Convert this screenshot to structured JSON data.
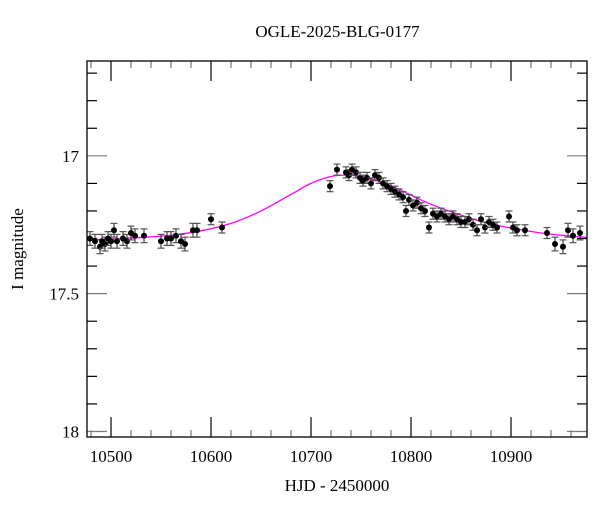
{
  "chart_data": {
    "type": "scatter",
    "title": "OGLE-2025-BLG-0177",
    "xlabel": "HJD - 2450000",
    "ylabel": "I magnitude",
    "xlim": [
      10476,
      10976
    ],
    "ylim": [
      18.02,
      16.656
    ],
    "y_inverted": true,
    "grid": false,
    "x_major_ticks": [
      10500,
      10600,
      10700,
      10800,
      10900
    ],
    "x_minor_step": 20,
    "y_major_ticks": [
      17,
      17.5,
      18
    ],
    "y_tick_labels": [
      "17",
      "17.5",
      "18"
    ],
    "y_minor_step": 0.1,
    "colors": {
      "data": "#000000",
      "errorbar": "#555555",
      "model": "#ff00ff",
      "frame": "#000000"
    },
    "series": [
      {
        "name": "OGLE I-band photometry",
        "kind": "points_with_errorbars",
        "points": [
          [
            10479,
            17.3,
            0.025
          ],
          [
            10484,
            17.31,
            0.025
          ],
          [
            10489,
            17.33,
            0.025
          ],
          [
            10491,
            17.31,
            0.025
          ],
          [
            10494,
            17.32,
            0.025
          ],
          [
            10497,
            17.3,
            0.025
          ],
          [
            10500,
            17.31,
            0.025
          ],
          [
            10503,
            17.27,
            0.025
          ],
          [
            10506,
            17.31,
            0.025
          ],
          [
            10512,
            17.3,
            0.025
          ],
          [
            10516,
            17.31,
            0.025
          ],
          [
            10520,
            17.28,
            0.025
          ],
          [
            10524,
            17.29,
            0.025
          ],
          [
            10533,
            17.29,
            0.025
          ],
          [
            10550,
            17.31,
            0.025
          ],
          [
            10556,
            17.3,
            0.025
          ],
          [
            10560,
            17.3,
            0.025
          ],
          [
            10565,
            17.29,
            0.025
          ],
          [
            10570,
            17.31,
            0.025
          ],
          [
            10574,
            17.32,
            0.025
          ],
          [
            10582,
            17.27,
            0.025
          ],
          [
            10586,
            17.27,
            0.025
          ],
          [
            10600,
            17.23,
            0.02
          ],
          [
            10611,
            17.26,
            0.02
          ],
          [
            10719,
            17.11,
            0.02
          ],
          [
            10726,
            17.05,
            0.02
          ],
          [
            10735,
            17.06,
            0.02
          ],
          [
            10738,
            17.07,
            0.02
          ],
          [
            10741,
            17.05,
            0.02
          ],
          [
            10745,
            17.06,
            0.02
          ],
          [
            10749,
            17.08,
            0.02
          ],
          [
            10752,
            17.09,
            0.02
          ],
          [
            10756,
            17.08,
            0.02
          ],
          [
            10760,
            17.1,
            0.02
          ],
          [
            10764,
            17.07,
            0.02
          ],
          [
            10768,
            17.08,
            0.02
          ],
          [
            10772,
            17.1,
            0.02
          ],
          [
            10776,
            17.11,
            0.02
          ],
          [
            10780,
            17.12,
            0.02
          ],
          [
            10784,
            17.13,
            0.02
          ],
          [
            10788,
            17.14,
            0.02
          ],
          [
            10792,
            17.15,
            0.02
          ],
          [
            10795,
            17.2,
            0.02
          ],
          [
            10798,
            17.16,
            0.02
          ],
          [
            10802,
            17.18,
            0.02
          ],
          [
            10806,
            17.17,
            0.02
          ],
          [
            10810,
            17.19,
            0.02
          ],
          [
            10814,
            17.2,
            0.02
          ],
          [
            10818,
            17.26,
            0.02
          ],
          [
            10822,
            17.21,
            0.02
          ],
          [
            10826,
            17.22,
            0.02
          ],
          [
            10830,
            17.21,
            0.02
          ],
          [
            10834,
            17.22,
            0.02
          ],
          [
            10838,
            17.23,
            0.02
          ],
          [
            10842,
            17.22,
            0.02
          ],
          [
            10846,
            17.23,
            0.02
          ],
          [
            10850,
            17.24,
            0.02
          ],
          [
            10854,
            17.24,
            0.02
          ],
          [
            10858,
            17.23,
            0.02
          ],
          [
            10862,
            17.25,
            0.02
          ],
          [
            10866,
            17.27,
            0.02
          ],
          [
            10870,
            17.23,
            0.02
          ],
          [
            10874,
            17.26,
            0.02
          ],
          [
            10878,
            17.24,
            0.02
          ],
          [
            10882,
            17.25,
            0.02
          ],
          [
            10886,
            17.26,
            0.02
          ],
          [
            10898,
            17.22,
            0.02
          ],
          [
            10902,
            17.26,
            0.02
          ],
          [
            10906,
            17.27,
            0.02
          ],
          [
            10914,
            17.27,
            0.02
          ],
          [
            10936,
            17.28,
            0.02
          ],
          [
            10944,
            17.32,
            0.025
          ],
          [
            10952,
            17.33,
            0.025
          ],
          [
            10957,
            17.27,
            0.025
          ],
          [
            10962,
            17.29,
            0.025
          ],
          [
            10969,
            17.28,
            0.025
          ]
        ]
      },
      {
        "name": "Microlensing model",
        "kind": "line",
        "x": [
          10476,
          10500,
          10530,
          10560,
          10590,
          10620,
          10650,
          10680,
          10700,
          10720,
          10735,
          10750,
          10770,
          10790,
          10810,
          10830,
          10850,
          10870,
          10890,
          10910,
          10930,
          10950,
          10976
        ],
        "y": [
          17.305,
          17.302,
          17.296,
          17.288,
          17.272,
          17.245,
          17.2,
          17.14,
          17.1,
          17.075,
          17.07,
          17.075,
          17.095,
          17.125,
          17.16,
          17.19,
          17.215,
          17.238,
          17.255,
          17.268,
          17.28,
          17.288,
          17.296
        ]
      }
    ]
  }
}
